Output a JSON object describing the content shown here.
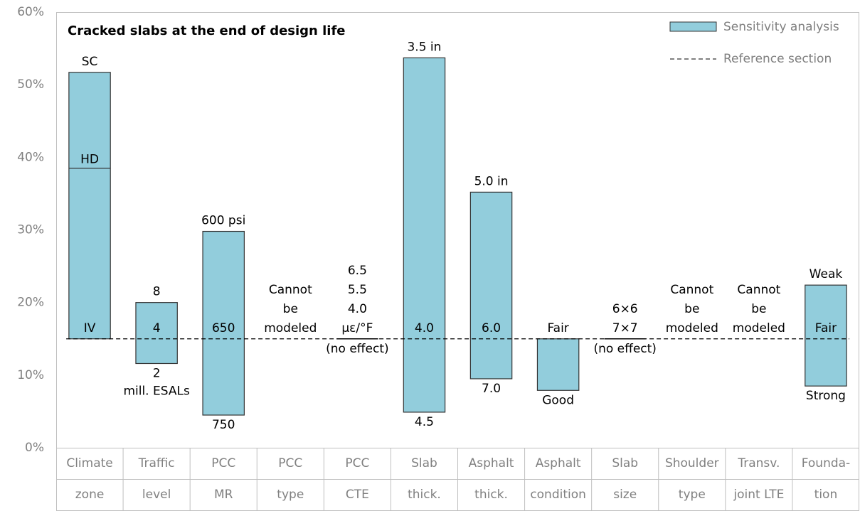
{
  "chart_data": {
    "type": "range_bar",
    "title": "Cracked slabs at the end of design life",
    "ylim": [
      0,
      60
    ],
    "yticks": [
      {
        "value": 0,
        "label": "0%"
      },
      {
        "value": 10,
        "label": "10%"
      },
      {
        "value": 20,
        "label": "20%"
      },
      {
        "value": 30,
        "label": "30%"
      },
      {
        "value": 40,
        "label": "40%"
      },
      {
        "value": 50,
        "label": "50%"
      },
      {
        "value": 60,
        "label": "60%"
      }
    ],
    "reference": 15,
    "color": "#92cddc",
    "legend": {
      "bar": "Sensitivity analysis",
      "reference": "Reference section",
      "position": "upper right"
    },
    "categories": [
      [
        "Climate",
        "zone"
      ],
      [
        "Traffic",
        "level"
      ],
      [
        "PCC",
        "MR"
      ],
      [
        "PCC",
        "type"
      ],
      [
        "PCC",
        "CTE"
      ],
      [
        "Slab",
        "thick."
      ],
      [
        "Asphalt",
        "thick."
      ],
      [
        "Asphalt",
        "condition"
      ],
      [
        "Slab",
        "size"
      ],
      [
        "Shoulder",
        "type"
      ],
      [
        "Transv.",
        "joint LTE"
      ],
      [
        "Founda-",
        "tion"
      ]
    ],
    "bars": [
      {
        "low": 15,
        "high": 51.7,
        "inner": 38.5,
        "inner_label": "HD",
        "top_labels": [
          "SC"
        ],
        "ref_label": "IV",
        "bottom_labels": []
      },
      {
        "low": 11.6,
        "high": 20.0,
        "top_labels": [
          "8"
        ],
        "ref_label": "4",
        "bottom_labels": [
          "2",
          "mill. ESALs"
        ]
      },
      {
        "low": 4.5,
        "high": 29.8,
        "top_labels": [
          "600 psi"
        ],
        "ref_label": "650",
        "bottom_labels": [
          "750"
        ]
      },
      {
        "low": null,
        "high": null,
        "top_labels": [
          "Cannot",
          "be",
          "modeled"
        ],
        "bottom_labels": []
      },
      {
        "low": 15,
        "high": 15,
        "top_labels": [
          "6.5",
          "5.5",
          "4.0",
          "με/°F"
        ],
        "bottom_labels": [
          "(no effect)"
        ]
      },
      {
        "low": 4.9,
        "high": 53.7,
        "top_labels": [
          "3.5 in"
        ],
        "ref_label": "4.0",
        "bottom_labels": [
          "4.5"
        ]
      },
      {
        "low": 9.5,
        "high": 35.2,
        "top_labels": [
          "5.0 in"
        ],
        "ref_label": "6.0",
        "bottom_labels": [
          "7.0"
        ]
      },
      {
        "low": 7.9,
        "high": 15,
        "top_labels": [],
        "ref_label": "Fair",
        "bottom_labels": [
          "Good"
        ]
      },
      {
        "low": 15,
        "high": 15,
        "top_labels": [
          "6×6",
          "7×7"
        ],
        "bottom_labels": [
          "(no effect)"
        ]
      },
      {
        "low": null,
        "high": null,
        "top_labels": [
          "Cannot",
          "be",
          "modeled"
        ],
        "bottom_labels": []
      },
      {
        "low": null,
        "high": null,
        "top_labels": [
          "Cannot",
          "be",
          "modeled"
        ],
        "bottom_labels": []
      },
      {
        "low": 8.5,
        "high": 22.4,
        "top_labels": [
          "Weak"
        ],
        "ref_label": "Fair",
        "bottom_labels": [
          "Strong"
        ]
      }
    ]
  }
}
